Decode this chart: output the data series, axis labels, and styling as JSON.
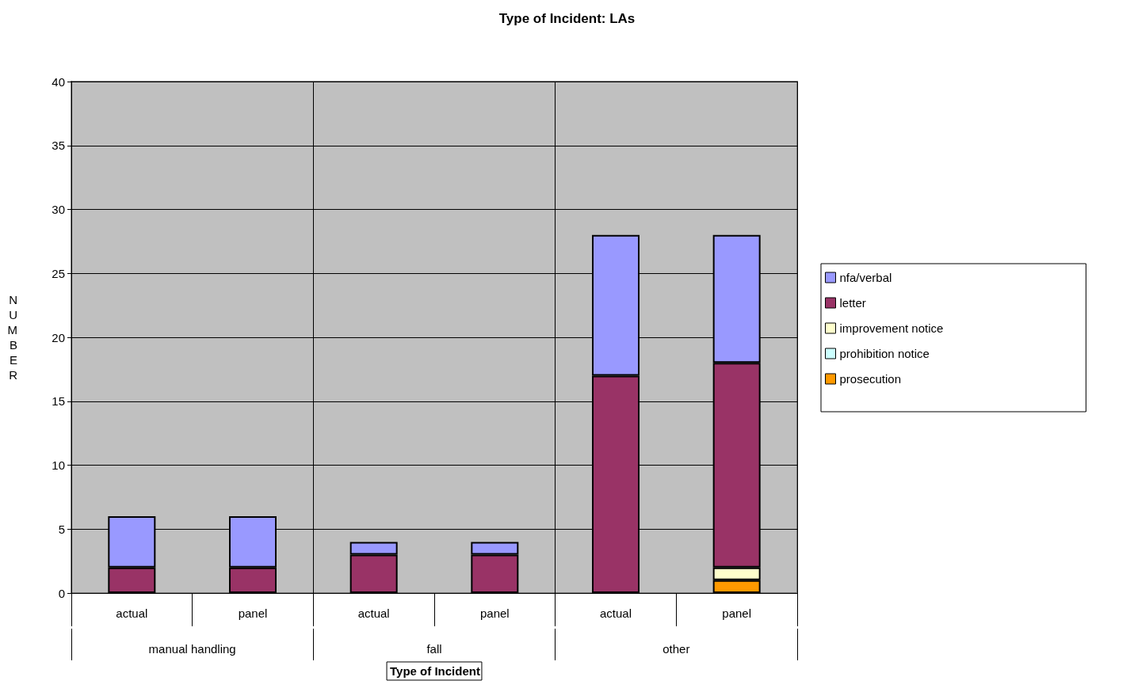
{
  "chart_data": {
    "type": "bar",
    "title": "Type of Incident: LAs",
    "xlabel": "Type of Incident",
    "ylabel": "NUMBER",
    "categories": [
      "actual",
      "panel",
      "actual",
      "panel",
      "actual",
      "panel"
    ],
    "annotations": [
      "manual handling",
      "fall",
      "other"
    ],
    "stacked": true,
    "series": [
      {
        "name": "prosecution",
        "color": "#ff9900",
        "values": [
          0,
          0,
          0,
          0,
          0,
          1
        ]
      },
      {
        "name": "prohibition notice",
        "color": "#ccffff",
        "values": [
          0,
          0,
          0,
          0,
          0,
          0
        ]
      },
      {
        "name": "improvement notice",
        "color": "#ffffcc",
        "values": [
          0,
          0,
          0,
          0,
          0,
          1
        ]
      },
      {
        "name": "letter",
        "color": "#993366",
        "values": [
          2,
          2,
          3,
          3,
          17,
          16
        ]
      },
      {
        "name": "nfa/verbal",
        "color": "#9999ff",
        "values": [
          4,
          4,
          1,
          1,
          11,
          10
        ]
      }
    ],
    "ylim": [
      0,
      40
    ],
    "yticks": [
      0,
      5,
      10,
      15,
      20,
      25,
      30,
      35,
      40
    ],
    "grid": true,
    "legend": "right"
  }
}
